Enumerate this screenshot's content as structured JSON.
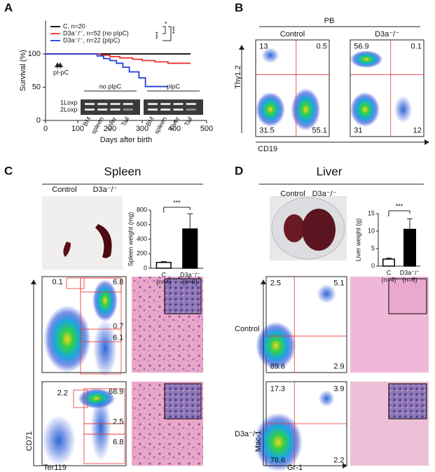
{
  "panel_labels": [
    "A",
    "B",
    "C",
    "D"
  ],
  "chart_data": [
    {
      "type": "line",
      "x_label": "Days after birth",
      "y_label": "Survival (%)",
      "xlim": [
        0,
        500
      ],
      "xticks": [
        0,
        100,
        200,
        300,
        400,
        500
      ],
      "ylim": [
        0,
        150
      ],
      "yticks": [
        0,
        50,
        100
      ],
      "series": [
        {
          "name": "C, n=20",
          "color": "#000000",
          "x": [
            0,
            450
          ],
          "values": [
            100,
            100
          ]
        },
        {
          "name": "D3a⁻/⁻, n=52 (no pIpC)",
          "color": "#e8322f",
          "x": [
            0,
            170,
            170,
            200,
            200,
            230,
            230,
            270,
            270,
            300,
            300,
            340,
            340,
            380,
            380,
            450
          ],
          "values": [
            100,
            100,
            98,
            98,
            96,
            96,
            94,
            94,
            92,
            92,
            90,
            90,
            88,
            88,
            86,
            86
          ]
        },
        {
          "name": "D3a⁻/⁻, n=22 (pIpC)",
          "color": "#1f3fd6",
          "x": [
            0,
            160,
            160,
            180,
            180,
            200,
            200,
            220,
            220,
            240,
            240,
            260,
            260,
            290,
            290,
            310,
            310,
            380
          ],
          "values": [
            100,
            100,
            97,
            97,
            93,
            93,
            90,
            90,
            86,
            86,
            80,
            80,
            73,
            73,
            64,
            64,
            51,
            51
          ]
        }
      ],
      "annotation": "pI-pC",
      "significance": [
        "***",
        "*",
        "***"
      ],
      "gel": {
        "groups": [
          "no pIpC",
          "pIpC"
        ],
        "bands": [
          "1Loxp",
          "2Loxp"
        ],
        "lanes": [
          "BM",
          "spleen",
          "Liver",
          "Tail",
          "BM",
          "spleen",
          "Liver",
          "Tail"
        ]
      }
    },
    {
      "type": "bar",
      "y_label": "Spleen weight (mg)",
      "categories": [
        [
          "C",
          "(n=4)"
        ],
        [
          "D3a⁻/⁻",
          "(n=6)"
        ]
      ],
      "values": [
        80,
        540
      ],
      "errors": [
        12,
        210
      ],
      "colors": [
        "#ffffff",
        "#000000"
      ],
      "ylim": [
        0,
        800
      ],
      "yticks": [
        0,
        200,
        400,
        600,
        800
      ],
      "significance": "***"
    },
    {
      "type": "bar",
      "y_label": "Liver weight (g)",
      "categories": [
        [
          "C",
          "(n=4)"
        ],
        [
          "D3a⁻/⁻",
          "(n=6)"
        ]
      ],
      "values": [
        2,
        10.5
      ],
      "errors": [
        0.3,
        3
      ],
      "colors": [
        "#ffffff",
        "#000000"
      ],
      "ylim": [
        0,
        15
      ],
      "yticks": [
        0,
        5,
        10,
        15
      ],
      "significance": "***"
    }
  ],
  "panel_b": {
    "title": "PB",
    "samples": [
      "Control",
      "D3a⁻/⁻"
    ],
    "y_label": "Thy1.2",
    "x_label": "CD19",
    "gates": [
      [
        {
          "text": "13",
          "color": "#222222"
        },
        {
          "text": "0.5",
          "color": "#222222"
        },
        {
          "text": "31.5",
          "color": "#222222"
        },
        {
          "text": "55.1",
          "color": "#222222"
        }
      ],
      [
        {
          "text": "56.9",
          "color": "#e8322f"
        },
        {
          "text": "0.1",
          "color": "#222222"
        },
        {
          "text": "31",
          "color": "#222222"
        },
        {
          "text": "12",
          "color": "#e8322f"
        }
      ]
    ]
  },
  "panel_c": {
    "title": "Spleen",
    "samples": [
      "Control",
      "D3a⁻/⁻"
    ],
    "y_label": "CD71",
    "x_label": "Ter119",
    "gates": [
      [
        {
          "text": "0.1",
          "color": "#222222"
        },
        {
          "text": "6.8",
          "color": "#222222"
        },
        {
          "text": "0.7",
          "color": "#222222"
        },
        {
          "text": "6.1",
          "color": "#222222"
        }
      ],
      [
        {
          "text": "2.2",
          "color": "#e8322f"
        },
        {
          "text": "68.9",
          "color": "#e8322f"
        },
        {
          "text": "2.5",
          "color": "#e8322f"
        },
        {
          "text": "6.8",
          "color": "#e8322f"
        }
      ]
    ]
  },
  "panel_d": {
    "title": "Liver",
    "samples": [
      "Control",
      "D3a⁻/⁻"
    ],
    "row_labels": [
      "Control",
      "D3a⁻/⁻"
    ],
    "y_label": "Mac-1",
    "x_label": "Gr-1",
    "gates": [
      [
        {
          "text": "2.5",
          "color": "#222222"
        },
        {
          "text": "5.1",
          "color": "#222222"
        },
        {
          "text": "89.6",
          "color": "#222222"
        },
        {
          "text": "2.9",
          "color": "#222222"
        }
      ],
      [
        {
          "text": "17.3",
          "color": "#e8322f"
        },
        {
          "text": "3.9",
          "color": "#222222"
        },
        {
          "text": "76.6",
          "color": "#222222"
        },
        {
          "text": "2.2",
          "color": "#222222"
        }
      ]
    ]
  }
}
